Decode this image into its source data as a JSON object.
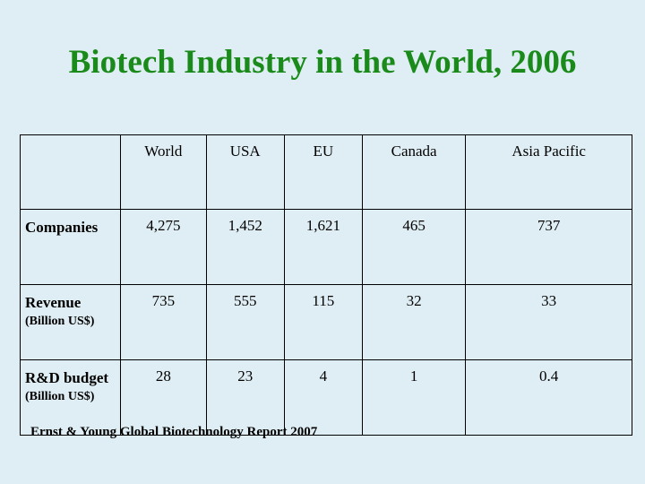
{
  "title": "Biotech Industry in the World, 2006",
  "table": {
    "columns": [
      "",
      "World",
      "USA",
      "EU",
      "Canada",
      "Asia Pacific"
    ],
    "rows": [
      {
        "label": "Companies",
        "sublabel": "",
        "values": [
          "4,275",
          "1,452",
          "1,621",
          "465",
          "737"
        ]
      },
      {
        "label": "Revenue",
        "sublabel": "(Billion US$)",
        "values": [
          "735",
          "555",
          "115",
          "32",
          "33"
        ]
      },
      {
        "label": "R&D budget",
        "sublabel": "(Billion US$)",
        "values": [
          "28",
          "23",
          "4",
          "1",
          "0.4"
        ]
      }
    ]
  },
  "source": "Ernst & Young Global Biotechnology Report 2007"
}
